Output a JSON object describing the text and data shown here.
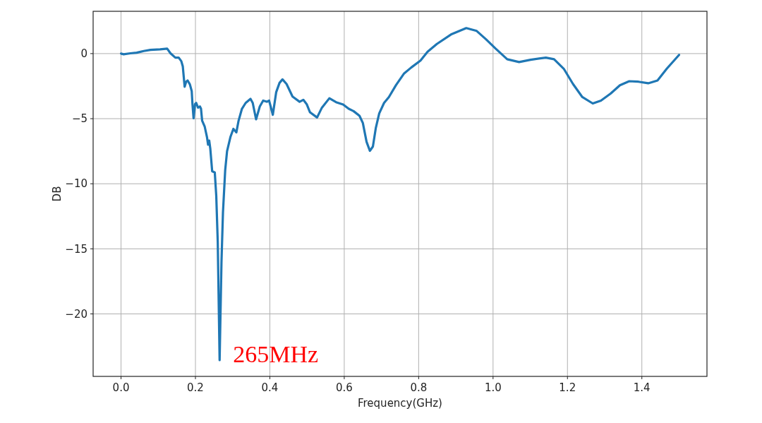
{
  "chart_data": {
    "type": "line",
    "xlabel": "Frequency(GHz)",
    "ylabel": "DB",
    "xlim": [
      -0.075,
      1.575
    ],
    "ylim": [
      -24.8,
      3.25
    ],
    "xticks": [
      {
        "value": 0,
        "label": "0.0"
      },
      {
        "value": 0.2,
        "label": "0.2"
      },
      {
        "value": 0.4,
        "label": "0.4"
      },
      {
        "value": 0.6,
        "label": "0.6"
      },
      {
        "value": 0.8,
        "label": "0.8"
      },
      {
        "value": 1.0,
        "label": "1.0"
      },
      {
        "value": 1.2,
        "label": "1.2"
      },
      {
        "value": 1.4,
        "label": "1.4"
      }
    ],
    "yticks": [
      {
        "value": 0,
        "label": "0"
      },
      {
        "value": -5,
        "label": "−5"
      },
      {
        "value": -10,
        "label": "−10"
      },
      {
        "value": -15,
        "label": "−15"
      },
      {
        "value": -20,
        "label": "−20"
      }
    ],
    "grid": true,
    "annotations": [
      {
        "text": "265MHz",
        "x": 0.265,
        "y": -23.55
      }
    ],
    "series": [
      {
        "color": "#1f77b4",
        "x": [
          0.0,
          0.007,
          0.025,
          0.042,
          0.061,
          0.079,
          0.105,
          0.124,
          0.133,
          0.146,
          0.155,
          0.162,
          0.166,
          0.171,
          0.175,
          0.179,
          0.185,
          0.19,
          0.192,
          0.195,
          0.199,
          0.202,
          0.207,
          0.212,
          0.215,
          0.218,
          0.225,
          0.231,
          0.234,
          0.237,
          0.24,
          0.245,
          0.252,
          0.256,
          0.26,
          0.265,
          0.27,
          0.274,
          0.28,
          0.285,
          0.294,
          0.302,
          0.31,
          0.316,
          0.325,
          0.335,
          0.348,
          0.354,
          0.363,
          0.373,
          0.382,
          0.392,
          0.398,
          0.408,
          0.417,
          0.426,
          0.434,
          0.445,
          0.461,
          0.48,
          0.49,
          0.499,
          0.508,
          0.527,
          0.54,
          0.56,
          0.578,
          0.597,
          0.612,
          0.625,
          0.641,
          0.65,
          0.66,
          0.669,
          0.677,
          0.685,
          0.694,
          0.707,
          0.72,
          0.739,
          0.761,
          0.78,
          0.805,
          0.824,
          0.849,
          0.887,
          0.928,
          0.956,
          0.981,
          1.007,
          1.038,
          1.07,
          1.101,
          1.142,
          1.164,
          1.19,
          1.215,
          1.24,
          1.268,
          1.29,
          1.316,
          1.341,
          1.366,
          1.391,
          1.417,
          1.442,
          1.467,
          1.5
        ],
        "values": [
          0.0,
          -0.05,
          0.02,
          0.07,
          0.2,
          0.29,
          0.33,
          0.38,
          0.02,
          -0.31,
          -0.31,
          -0.58,
          -0.98,
          -2.55,
          -2.16,
          -2.07,
          -2.36,
          -2.88,
          -3.88,
          -4.97,
          -3.88,
          -3.79,
          -4.15,
          -4.06,
          -4.24,
          -5.15,
          -5.62,
          -6.41,
          -7.0,
          -6.68,
          -7.32,
          -9.04,
          -9.13,
          -10.95,
          -14.5,
          -23.55,
          -16.0,
          -12.2,
          -8.95,
          -7.5,
          -6.41,
          -5.78,
          -6.05,
          -5.15,
          -4.24,
          -3.79,
          -3.48,
          -3.79,
          -5.05,
          -4.06,
          -3.61,
          -3.7,
          -3.61,
          -4.7,
          -2.97,
          -2.25,
          -1.98,
          -2.34,
          -3.3,
          -3.7,
          -3.55,
          -3.88,
          -4.51,
          -4.91,
          -4.15,
          -3.43,
          -3.73,
          -3.91,
          -4.24,
          -4.42,
          -4.78,
          -5.33,
          -6.78,
          -7.47,
          -7.14,
          -5.69,
          -4.6,
          -3.79,
          -3.34,
          -2.43,
          -1.52,
          -1.07,
          -0.53,
          0.14,
          0.74,
          1.47,
          1.96,
          1.74,
          1.1,
          0.38,
          -0.43,
          -0.65,
          -0.47,
          -0.31,
          -0.43,
          -1.16,
          -2.34,
          -3.34,
          -3.83,
          -3.61,
          -3.07,
          -2.43,
          -2.12,
          -2.16,
          -2.28,
          -2.07,
          -1.16,
          -0.1
        ]
      }
    ]
  }
}
